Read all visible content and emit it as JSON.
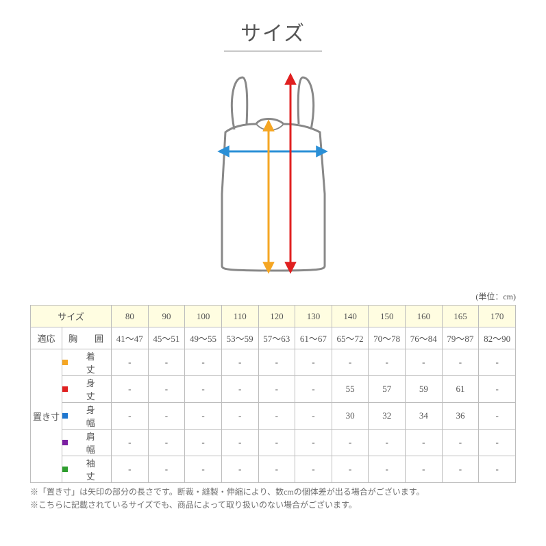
{
  "title": "サイズ",
  "unit_label": "(単位：cm)",
  "diagram": {
    "garment_stroke": "#888888",
    "arrow_blue": "#2a8fd6",
    "arrow_red": "#e02020",
    "arrow_orange": "#f5a623"
  },
  "table": {
    "header_bg": "#fffde1",
    "border": "#bdbdbd",
    "size_header": "サイズ",
    "sizes": [
      "80",
      "90",
      "100",
      "110",
      "120",
      "130",
      "140",
      "150",
      "160",
      "165",
      "170"
    ],
    "fit": {
      "group_label": "適応",
      "rows": [
        {
          "label": "胸　囲",
          "values": [
            "41～47",
            "45～51",
            "49～55",
            "53～59",
            "57～63",
            "61～67",
            "65～72",
            "70～78",
            "76～84",
            "79～87",
            "82～90"
          ]
        }
      ]
    },
    "flat": {
      "group_label": "置き寸",
      "rows": [
        {
          "color": "#f5a623",
          "marker": "m-orange",
          "label": "着　丈",
          "values": [
            "-",
            "-",
            "-",
            "-",
            "-",
            "-",
            "-",
            "-",
            "-",
            "-",
            "-"
          ]
        },
        {
          "color": "#e02020",
          "marker": "m-red",
          "label": "身　丈",
          "values": [
            "-",
            "-",
            "-",
            "-",
            "-",
            "-",
            "55",
            "57",
            "59",
            "61",
            "-"
          ]
        },
        {
          "color": "#1f77d0",
          "marker": "m-blue",
          "label": "身　幅",
          "values": [
            "-",
            "-",
            "-",
            "-",
            "-",
            "-",
            "30",
            "32",
            "34",
            "36",
            "-"
          ]
        },
        {
          "color": "#7b1fa2",
          "marker": "m-purple",
          "label": "肩　幅",
          "values": [
            "-",
            "-",
            "-",
            "-",
            "-",
            "-",
            "-",
            "-",
            "-",
            "-",
            "-"
          ]
        },
        {
          "color": "#2e9e2e",
          "marker": "m-green",
          "label": "袖　丈",
          "values": [
            "-",
            "-",
            "-",
            "-",
            "-",
            "-",
            "-",
            "-",
            "-",
            "-",
            "-"
          ]
        }
      ]
    }
  },
  "notes": [
    "※「置き寸」は矢印の部分の長さです。断裁・縫製・伸縮により、数cmの個体差が出る場合がございます。",
    "※こちらに記載されているサイズでも、商品によって取り扱いのない場合がございます。"
  ]
}
